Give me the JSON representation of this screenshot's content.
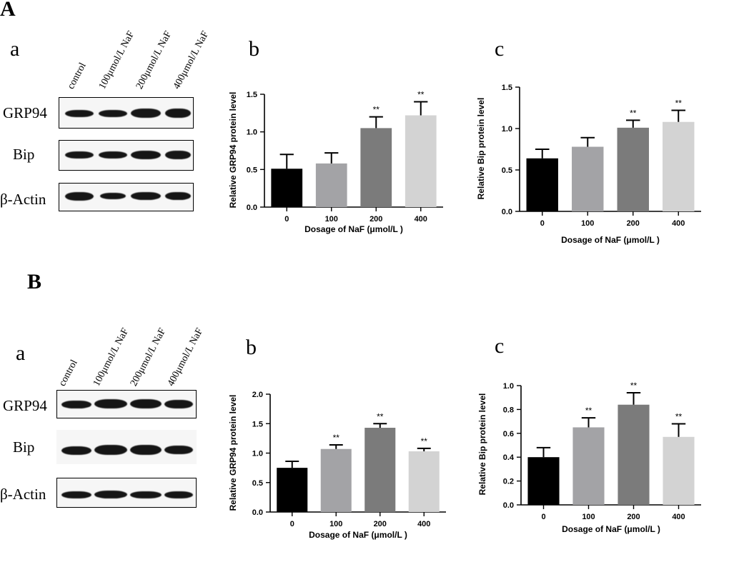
{
  "sections": [
    {
      "label": "A",
      "panel_a": {
        "label": "a",
        "lanes": [
          "control",
          "100μmol/L NaF",
          "200μmol/L NaF",
          "400μmol/L NaF"
        ],
        "blots": [
          "GRP94",
          "Bip",
          "β-Actin"
        ]
      },
      "panel_b_label": "b",
      "panel_c_label": "c"
    },
    {
      "label": "B",
      "panel_a": {
        "label": "a",
        "lanes": [
          "control",
          "100μmol/L NaF",
          "200μmol/L NaF",
          "400μmol/L NaF"
        ],
        "blots": [
          "GRP94",
          "Bip",
          "β-Actin"
        ]
      },
      "panel_b_label": "b",
      "panel_c_label": "c"
    }
  ],
  "chart_data": [
    {
      "id": "A-b",
      "type": "bar",
      "categories": [
        "0",
        "100",
        "200",
        "400"
      ],
      "values": [
        0.51,
        0.58,
        1.05,
        1.22
      ],
      "errors": [
        0.19,
        0.14,
        0.15,
        0.18
      ],
      "significance": [
        "",
        "",
        "**",
        "**"
      ],
      "colors": [
        "#000000",
        "#a3a3a6",
        "#7b7b7b",
        "#d3d3d3"
      ],
      "xlabel": "Dosage of NaF (μmol/L )",
      "ylabel": "Relative GRP94 protein level",
      "ylim": [
        0,
        1.5
      ],
      "yticks": [
        "0.0",
        "0.5",
        "1.0",
        "1.5"
      ]
    },
    {
      "id": "A-c",
      "type": "bar",
      "categories": [
        "0",
        "100",
        "200",
        "400"
      ],
      "values": [
        0.64,
        0.78,
        1.01,
        1.08
      ],
      "errors": [
        0.11,
        0.11,
        0.09,
        0.14
      ],
      "significance": [
        "",
        "",
        "**",
        "**"
      ],
      "colors": [
        "#000000",
        "#a3a3a6",
        "#7b7b7b",
        "#d3d3d3"
      ],
      "xlabel": "Dosage of NaF (μmol/L )",
      "ylabel": "Relative Bip protein level",
      "ylim": [
        0,
        1.5
      ],
      "yticks": [
        "0.0",
        "0.5",
        "1.0",
        "1.5"
      ]
    },
    {
      "id": "B-b",
      "type": "bar",
      "categories": [
        "0",
        "100",
        "200",
        "400"
      ],
      "values": [
        0.75,
        1.07,
        1.43,
        1.03
      ],
      "errors": [
        0.11,
        0.07,
        0.07,
        0.05
      ],
      "significance": [
        "",
        "**",
        "**",
        "**"
      ],
      "colors": [
        "#000000",
        "#a3a3a6",
        "#7b7b7b",
        "#d3d3d3"
      ],
      "xlabel": "Dosage of NaF (μmol/L )",
      "ylabel": "Relative GRP94 protein level",
      "ylim": [
        0,
        2.0
      ],
      "yticks": [
        "0.0",
        "0.5",
        "1.0",
        "1.5",
        "2.0"
      ]
    },
    {
      "id": "B-c",
      "type": "bar",
      "categories": [
        "0",
        "100",
        "200",
        "400"
      ],
      "values": [
        0.4,
        0.65,
        0.84,
        0.57
      ],
      "errors": [
        0.08,
        0.08,
        0.1,
        0.11
      ],
      "significance": [
        "",
        "**",
        "**",
        "**"
      ],
      "colors": [
        "#000000",
        "#a3a3a6",
        "#7b7b7b",
        "#d3d3d3"
      ],
      "xlabel": "Dosage of NaF (μmol/L )",
      "ylabel": "Relative Bip protein level",
      "ylim": [
        0,
        1.0
      ],
      "yticks": [
        "0.0",
        "0.2",
        "0.4",
        "0.6",
        "0.8",
        "1.0"
      ]
    }
  ]
}
